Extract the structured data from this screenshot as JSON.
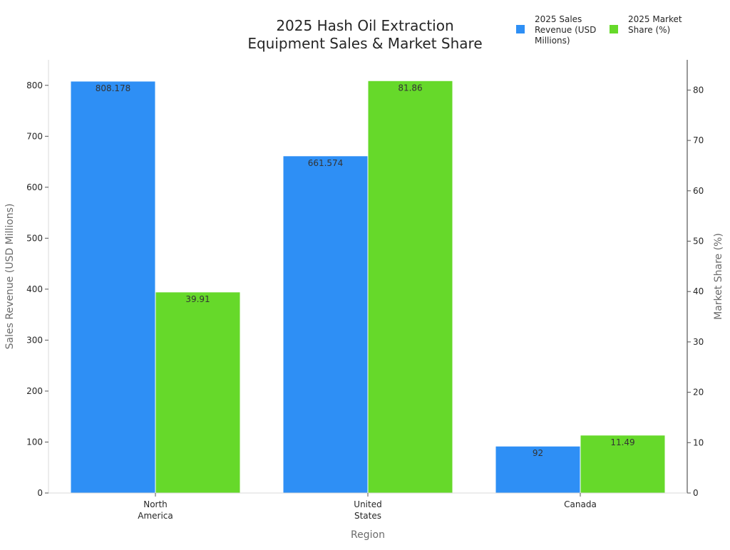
{
  "chart_data": {
    "type": "bar",
    "title": "2025 Hash Oil Extraction Equipment Sales & Market Share",
    "title_lines": [
      "2025 Hash Oil Extraction",
      "Equipment Sales & Market Share"
    ],
    "xlabel": "Region",
    "ylabel_left": "Sales Revenue (USD Millions)",
    "ylabel_right": "Market Share (%)",
    "categories": [
      "North America",
      "United States",
      "Canada"
    ],
    "category_lines": [
      [
        "North",
        "America"
      ],
      [
        "United",
        "States"
      ],
      [
        "Canada"
      ]
    ],
    "series": [
      {
        "name": "2025 Sales Revenue (USD Millions)",
        "legend_lines": [
          "2025 Sales",
          "Revenue (USD",
          "Millions)"
        ],
        "axis": "left",
        "color": "#2e8ff5",
        "values": [
          808.178,
          661.574,
          92
        ],
        "labels": [
          "808.178",
          "661.574",
          "92"
        ]
      },
      {
        "name": "2025 Market Share (%)",
        "legend_lines": [
          "2025 Market",
          "Share (%)"
        ],
        "axis": "right",
        "color": "#66d92a",
        "values": [
          39.91,
          81.86,
          11.49
        ],
        "labels": [
          "39.91",
          "81.86",
          "11.49"
        ]
      }
    ],
    "ylim_left": [
      0,
      850
    ],
    "yticks_left": [
      0,
      100,
      200,
      300,
      400,
      500,
      600,
      700,
      800
    ],
    "ylim_right": [
      0,
      86
    ],
    "yticks_right": [
      0,
      10,
      20,
      30,
      40,
      50,
      60,
      70,
      80
    ],
    "legend_position": "top-right",
    "grid": false
  }
}
